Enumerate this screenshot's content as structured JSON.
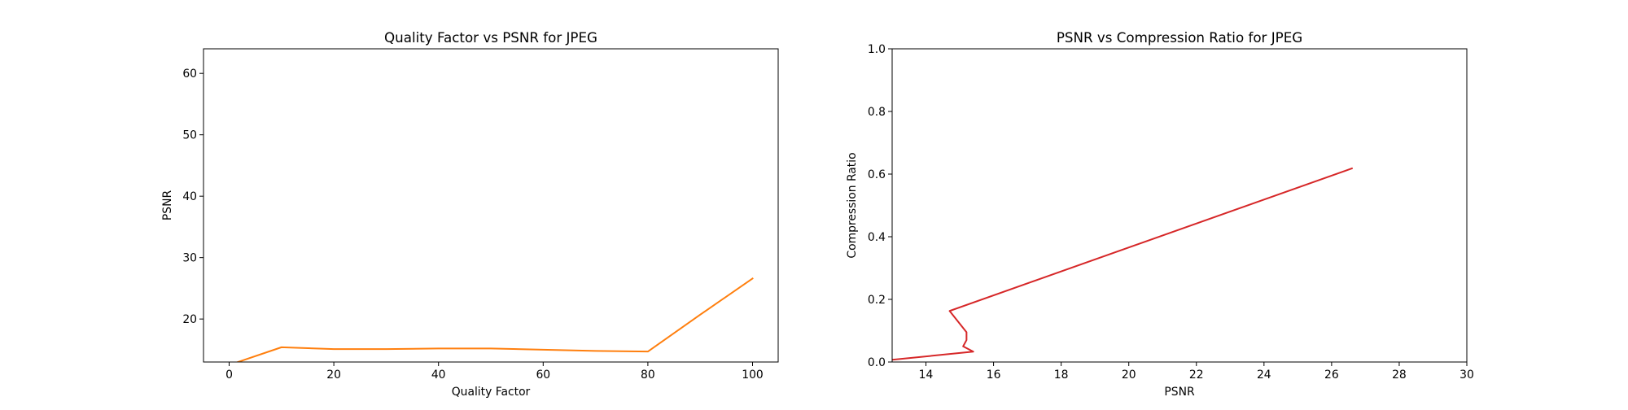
{
  "chart_data": [
    {
      "type": "line",
      "title": "Quality Factor vs PSNR for JPEG",
      "xlabel": "Quality Factor",
      "ylabel": "PSNR",
      "xlim": [
        -4.9,
        104.9
      ],
      "ylim": [
        13.0,
        64.0
      ],
      "xticks": [
        "0",
        "20",
        "40",
        "60",
        "80",
        "100"
      ],
      "yticks": [
        "20",
        "30",
        "40",
        "50",
        "60"
      ],
      "xtick_values": [
        0,
        20,
        40,
        60,
        80,
        100
      ],
      "ytick_values": [
        20,
        30,
        40,
        50,
        60
      ],
      "grid": false,
      "series": [
        {
          "color": "#ff7f0e",
          "x": [
            1,
            10,
            20,
            30,
            40,
            50,
            60,
            70,
            80,
            90,
            100
          ],
          "y": [
            12.8,
            15.4,
            15.1,
            15.1,
            15.2,
            15.2,
            15.0,
            14.8,
            14.7,
            20.7,
            26.6
          ]
        }
      ]
    },
    {
      "type": "line",
      "title": "PSNR vs Compression Ratio for JPEG",
      "xlabel": "PSNR",
      "ylabel": "Compression Ratio",
      "xlim": [
        13.0,
        30.0
      ],
      "ylim": [
        0.0,
        1.0
      ],
      "xticks": [
        "14",
        "16",
        "18",
        "20",
        "22",
        "24",
        "26",
        "28",
        "30"
      ],
      "yticks": [
        "0.0",
        "0.2",
        "0.4",
        "0.6",
        "0.8",
        "1.0"
      ],
      "xtick_values": [
        14,
        16,
        18,
        20,
        22,
        24,
        26,
        28,
        30
      ],
      "ytick_values": [
        0.0,
        0.2,
        0.4,
        0.6,
        0.8,
        1.0
      ],
      "grid": false,
      "series": [
        {
          "color": "#d62728",
          "x": [
            12.8,
            15.4,
            15.1,
            15.2,
            15.2,
            14.7,
            26.6
          ],
          "y": [
            0.005,
            0.033,
            0.05,
            0.07,
            0.095,
            0.163,
            0.618
          ]
        }
      ]
    }
  ]
}
